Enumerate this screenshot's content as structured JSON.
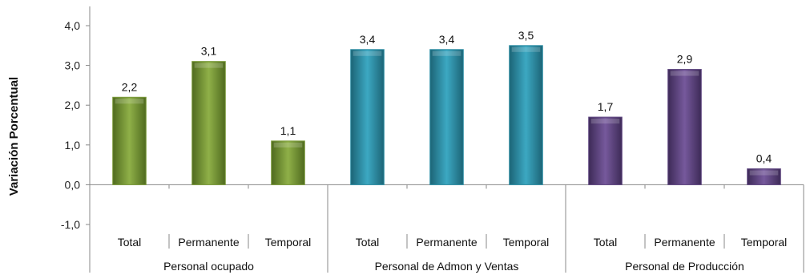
{
  "chart_data": {
    "type": "bar",
    "ylabel": "Variación Porcentual",
    "ylim": [
      -1.0,
      4.0
    ],
    "yticks": [
      "-1,0",
      "0,0",
      "1,0",
      "2,0",
      "3,0",
      "4,0"
    ],
    "grid": false,
    "groups": [
      {
        "label": "Personal ocupado",
        "color": "#7a9a3a",
        "bars": [
          {
            "category": "Total",
            "value": 2.2,
            "label": "2,2"
          },
          {
            "category": "Permanente",
            "value": 3.1,
            "label": "3,1"
          },
          {
            "category": "Temporal",
            "value": 1.1,
            "label": "1,1"
          }
        ]
      },
      {
        "label": "Personal de Admon y Ventas",
        "color": "#2f8fa5",
        "bars": [
          {
            "category": "Total",
            "value": 3.4,
            "label": "3,4"
          },
          {
            "category": "Permanente",
            "value": 3.4,
            "label": "3,4"
          },
          {
            "category": "Temporal",
            "value": 3.5,
            "label": "3,5"
          }
        ]
      },
      {
        "label": "Personal de Producción",
        "color": "#5e4580",
        "bars": [
          {
            "category": "Total",
            "value": 1.7,
            "label": "1,7"
          },
          {
            "category": "Permanente",
            "value": 2.9,
            "label": "2,9"
          },
          {
            "category": "Temporal",
            "value": 0.4,
            "label": "0,4"
          }
        ]
      }
    ]
  }
}
